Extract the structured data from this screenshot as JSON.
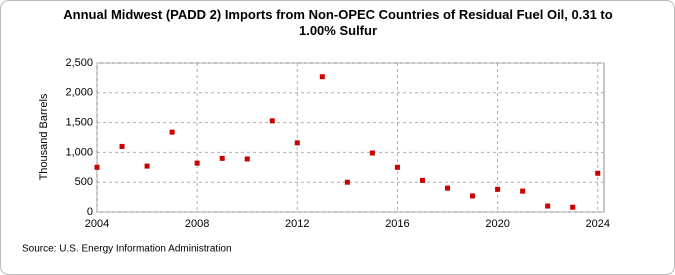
{
  "chart_data": {
    "type": "scatter",
    "title": "Annual Midwest (PADD 2) Imports from Non-OPEC Countries of Residual Fuel Oil, 0.31 to 1.00% Sulfur",
    "y_label": "Thousand Barrels",
    "source": "Source: U.S. Energy Information Administration",
    "x": [
      2004,
      2005,
      2006,
      2007,
      2008,
      2009,
      2010,
      2011,
      2012,
      2013,
      2014,
      2015,
      2016,
      2017,
      2018,
      2019,
      2020,
      2021,
      2022,
      2023,
      2024
    ],
    "series": [
      {
        "name": "Imports",
        "color": "#cc0000",
        "values": [
          750,
          1100,
          770,
          1340,
          820,
          900,
          890,
          1530,
          1160,
          2270,
          500,
          990,
          750,
          530,
          400,
          270,
          380,
          350,
          100,
          80,
          650
        ]
      }
    ],
    "xlim": [
      2004,
      2024.25
    ],
    "xticks": [
      2004,
      2008,
      2012,
      2016,
      2020,
      2024
    ],
    "ylim": [
      0,
      2500
    ],
    "yticks": [
      0,
      500,
      {
        "value": 1000,
        "label": "1,000"
      },
      {
        "value": 1500,
        "label": "1,500"
      },
      {
        "value": 2000,
        "label": "2,000"
      },
      {
        "value": 2500,
        "label": "2,500"
      }
    ],
    "grid": true
  }
}
